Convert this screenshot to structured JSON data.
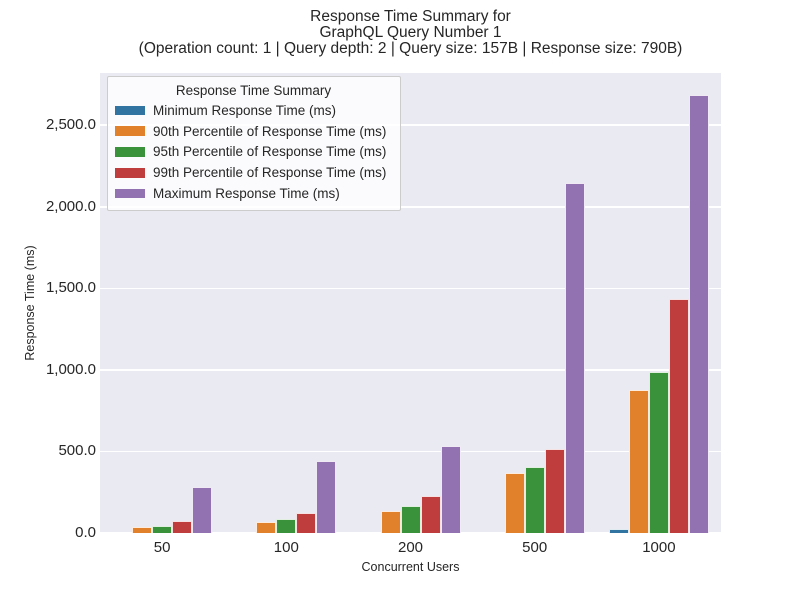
{
  "title": {
    "line1": "Response Time Summary for",
    "line2": "GraphQL Query Number 1",
    "line3": "(Operation count: 1 | Query depth: 2 | Query size: 157B | Response size: 790B)"
  },
  "colors": {
    "figure_background": "#ffffff",
    "axes_background": "#eaeaf2",
    "gridline": "#ffffff",
    "text": "#262626",
    "legend_border": "#cccccc"
  },
  "chart_data": {
    "type": "bar",
    "title": "Response Time Summary for GraphQL Query Number 1 (Operation count: 1 | Query depth: 2 | Query size: 157B | Response size: 790B)",
    "xlabel": "Concurrent Users",
    "ylabel": "Response Time (ms)",
    "categories": [
      "50",
      "100",
      "200",
      "500",
      "1000"
    ],
    "series": [
      {
        "name": "Minimum Response Time (ms)",
        "color": "#3274a1",
        "values": [
          2,
          3,
          4,
          6,
          24
        ]
      },
      {
        "name": "90th Percentile of Response Time (ms)",
        "color": "#e1812c",
        "values": [
          38,
          67,
          136,
          368,
          876
        ]
      },
      {
        "name": "95th Percentile of Response Time (ms)",
        "color": "#3a923a",
        "values": [
          44,
          87,
          166,
          406,
          988
        ]
      },
      {
        "name": "99th Percentile of Response Time (ms)",
        "color": "#c03d3e",
        "values": [
          71,
          125,
          227,
          517,
          1435
        ]
      },
      {
        "name": "Maximum Response Time (ms)",
        "color": "#9372b2",
        "values": [
          285,
          443,
          533,
          2143,
          2684
        ]
      }
    ],
    "ylim": [
      0,
      2820
    ],
    "yticks": [
      0,
      500,
      1000,
      1500,
      2000,
      2500
    ],
    "ytick_labels": [
      "0.0",
      "500.0",
      "1,000.0",
      "1,500.0",
      "2,000.0",
      "2,500.0"
    ],
    "grid": true,
    "legend": {
      "title": "Response Time Summary",
      "position": "upper left"
    }
  }
}
